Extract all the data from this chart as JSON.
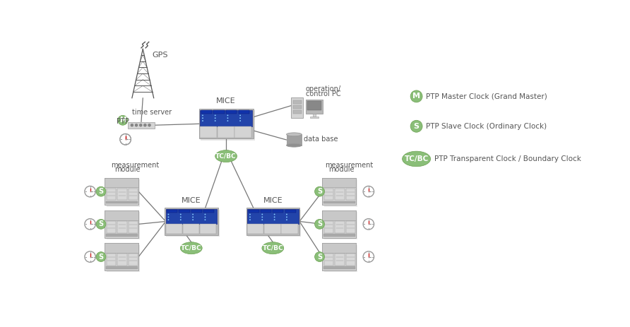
{
  "bg_color": "#ffffff",
  "green_color": "#8abe78",
  "gray_light": "#d4d4d4",
  "gray_mid": "#999999",
  "gray_dark": "#777777",
  "gray_outer": "#bbbbbb",
  "blue_panel": "#2244aa",
  "text_color": "#555555",
  "legend": [
    {
      "label": "M",
      "text": "PTP Master Clock (Grand Master)"
    },
    {
      "label": "S",
      "text": "PTP Slave Clock (Ordinary Clock)"
    },
    {
      "label": "TC/BC",
      "text": "PTP Transparent Clock / Boundary Clock"
    }
  ],
  "figw": 8.92,
  "figh": 4.63
}
